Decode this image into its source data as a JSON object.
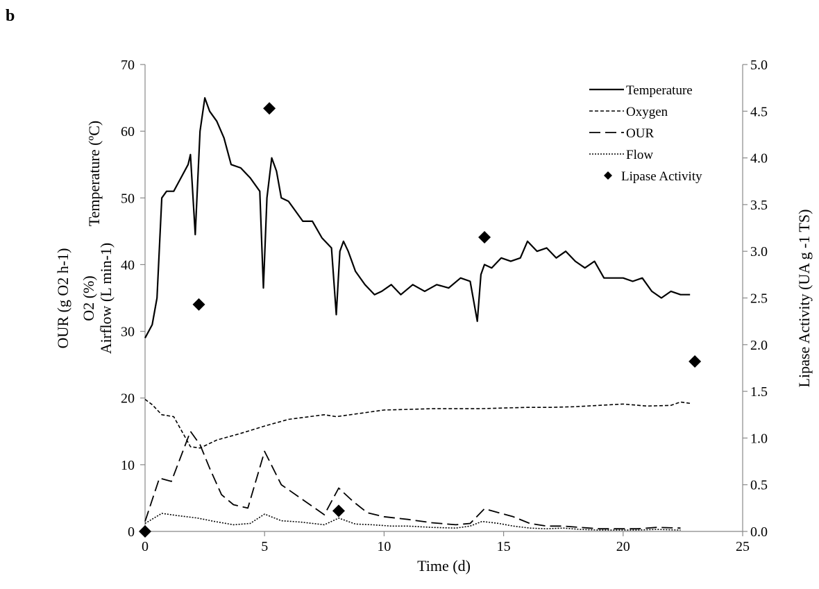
{
  "panel_label": "b",
  "chart_data": {
    "type": "line",
    "xlabel": "Time (d)",
    "ylabel_left": [
      "Temperature (ºC)",
      "O2 (%)",
      "Airflow (L min-1)",
      "OUR (g O2 h-1)"
    ],
    "ylabel_right": "Lipase Activity (UA g -1 TS)",
    "xlim": [
      0,
      25
    ],
    "ylim_left": [
      0,
      70
    ],
    "ylim_right": [
      0,
      5
    ],
    "x_ticks": [
      0,
      5,
      10,
      15,
      20,
      25
    ],
    "y_ticks_left": [
      0,
      10,
      20,
      30,
      40,
      50,
      60,
      70
    ],
    "y_ticks_right": [
      "0.0",
      "0.5",
      "1.0",
      "1.5",
      "2.0",
      "2.5",
      "3.0",
      "3.5",
      "4.0",
      "4.5",
      "5.0"
    ],
    "legend_position": "top-right",
    "series": [
      {
        "name": "Temperature",
        "style": "solid",
        "axis": "left",
        "x": [
          0,
          0.3,
          0.5,
          0.7,
          0.9,
          1.2,
          1.5,
          1.8,
          1.9,
          2.1,
          2.3,
          2.5,
          2.7,
          3.0,
          3.3,
          3.6,
          4.0,
          4.4,
          4.8,
          4.95,
          5.1,
          5.3,
          5.5,
          5.7,
          6.0,
          6.3,
          6.6,
          7.0,
          7.4,
          7.8,
          8.0,
          8.15,
          8.3,
          8.5,
          8.8,
          9.2,
          9.6,
          9.9,
          10.3,
          10.7,
          11.2,
          11.7,
          12.2,
          12.7,
          13.2,
          13.6,
          13.9,
          14.05,
          14.2,
          14.5,
          14.9,
          15.3,
          15.7,
          16.0,
          16.4,
          16.8,
          17.2,
          17.6,
          18.0,
          18.4,
          18.8,
          19.2,
          19.6,
          20.0,
          20.4,
          20.8,
          21.2,
          21.6,
          22.0,
          22.4,
          22.8
        ],
        "y": [
          29,
          31,
          35,
          50,
          51,
          51,
          53,
          55,
          56.5,
          44.5,
          60,
          65,
          63,
          61.5,
          59,
          55,
          54.5,
          53,
          51,
          36.5,
          50,
          56,
          54,
          50,
          49.5,
          48,
          46.5,
          46.5,
          44,
          42.5,
          32.5,
          42,
          43.5,
          42,
          39,
          37,
          35.5,
          36,
          37,
          35.5,
          37,
          36,
          37,
          36.5,
          38,
          37.5,
          31.5,
          38.5,
          40,
          39.5,
          41,
          40.5,
          41,
          43.5,
          42,
          42.5,
          41,
          42,
          40.5,
          39.5,
          40.5,
          38,
          38,
          38,
          37.5,
          38,
          36,
          35,
          36,
          35.5,
          35.5
        ]
      },
      {
        "name": "Oxygen",
        "style": "short-dash",
        "axis": "left",
        "x": [
          0,
          0.3,
          0.7,
          1.2,
          1.9,
          2.3,
          3.0,
          4.0,
          5.0,
          6.0,
          7.5,
          8.0,
          9.0,
          10.0,
          11.0,
          12.0,
          13.0,
          14.0,
          15.0,
          16.0,
          17.0,
          18.0,
          19.0,
          20.0,
          21.0,
          22.0,
          22.4,
          22.8
        ],
        "y": [
          19.8,
          19,
          17.5,
          17.2,
          12.7,
          12.5,
          13.7,
          14.7,
          15.8,
          16.8,
          17.5,
          17.2,
          17.7,
          18.2,
          18.3,
          18.4,
          18.4,
          18.4,
          18.5,
          18.6,
          18.6,
          18.7,
          18.9,
          19.1,
          18.8,
          18.9,
          19.4,
          19.2
        ]
      },
      {
        "name": "OUR",
        "style": "long-dash",
        "axis": "left",
        "x": [
          0,
          0.6,
          1.1,
          1.9,
          2.3,
          2.7,
          3.2,
          3.7,
          4.3,
          5.0,
          5.7,
          6.5,
          7.5,
          8.1,
          8.7,
          9.3,
          10.0,
          11.0,
          12.0,
          13.0,
          13.6,
          14.2,
          14.8,
          15.4,
          16.1,
          16.8,
          17.5,
          18.2,
          19.0,
          19.8,
          20.6,
          21.4,
          22.4
        ],
        "y": [
          1.5,
          8,
          7.5,
          15,
          13,
          9.5,
          5.5,
          4,
          3.5,
          12,
          7,
          5,
          2.5,
          6.5,
          4.5,
          2.8,
          2.2,
          1.8,
          1.3,
          1,
          1.2,
          3.4,
          2.8,
          2.2,
          1.2,
          0.8,
          0.8,
          0.6,
          0.4,
          0.4,
          0.4,
          0.6,
          0.5
        ]
      },
      {
        "name": "Flow",
        "style": "dotted",
        "axis": "left",
        "x": [
          0,
          0.7,
          1.3,
          2.2,
          2.9,
          3.7,
          4.4,
          5.0,
          5.7,
          6.5,
          7.5,
          8.1,
          8.8,
          9.5,
          10.3,
          11.0,
          12.0,
          13.0,
          13.6,
          14.1,
          14.8,
          15.4,
          16.1,
          16.8,
          17.5,
          18.2,
          19.0,
          19.8,
          20.6,
          21.4,
          22.4
        ],
        "y": [
          1.2,
          2.7,
          2.4,
          2.0,
          1.5,
          1.0,
          1.2,
          2.6,
          1.6,
          1.4,
          1.0,
          2.0,
          1.1,
          1.0,
          0.8,
          0.8,
          0.6,
          0.5,
          0.8,
          1.5,
          1.2,
          0.8,
          0.5,
          0.4,
          0.5,
          0.3,
          0.2,
          0.2,
          0.2,
          0.3,
          0.2
        ]
      },
      {
        "name": "Lipase Activity",
        "style": "diamond-markers",
        "axis": "right",
        "x": [
          0,
          2.25,
          5.2,
          8.1,
          14.2,
          23.0
        ],
        "y": [
          0.0,
          2.43,
          4.53,
          0.22,
          3.15,
          1.82
        ]
      }
    ]
  }
}
